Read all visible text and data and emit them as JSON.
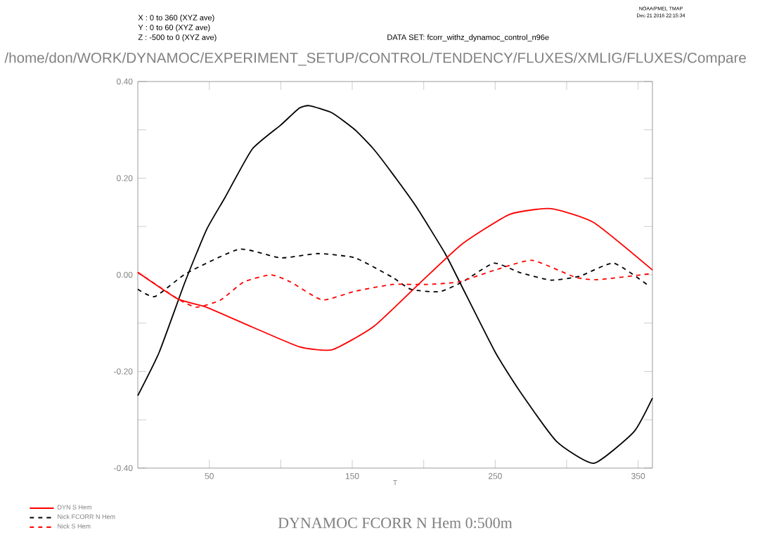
{
  "chart_data": {
    "type": "line",
    "title": "DYNAMOC FCORR N Hem 0:500m",
    "xlabel": "T",
    "annotations": [
      "X : 0 to 360 (XYZ ave)",
      "Y : 0 to 60 (XYZ ave)",
      "Z : -500 to 0 (XYZ ave)",
      "DATA SET: fcorr_withz_dynamoc_control_n96e",
      "/home/don/WORK/DYNAMOC/EXPERIMENT_SETUP/CONTROL/TENDENCY/FLUXES/XMLIG/FLUXES/Compare",
      "NOAA/PMEL TMAP",
      "Dec 21 2016 22:15:34"
    ],
    "xlim": [
      0,
      360
    ],
    "ylim": [
      -0.4,
      0.4
    ],
    "xticks": [
      50,
      {
        "value": 100,
        "label": null
      },
      150,
      {
        "value": 200,
        "label": null
      },
      250,
      {
        "value": 300,
        "label": null
      },
      350
    ],
    "yticks": [
      {
        "value": -0.4,
        "label": "-0.40"
      },
      {
        "value": -0.3,
        "label": null
      },
      {
        "value": -0.2,
        "label": "-0.20"
      },
      {
        "value": -0.1,
        "label": null
      },
      {
        "value": 0.0,
        "label": "0.00"
      },
      {
        "value": 0.1,
        "label": null
      },
      {
        "value": 0.2,
        "label": "0.20"
      },
      {
        "value": 0.3,
        "label": null
      },
      {
        "value": 0.4,
        "label": "0.40"
      }
    ],
    "legend": "bottom left",
    "series": [
      {
        "color": "#000000",
        "line_style": "solid",
        "x": [
          0,
          15,
          33,
          48,
          61,
          80,
          100,
          113,
          120,
          136,
          152,
          165,
          178,
          195,
          215,
          226,
          250,
          267,
          293,
          319,
          347,
          360
        ],
        "values": [
          -0.25,
          -0.16,
          -0.015,
          0.093,
          0.16,
          0.26,
          0.31,
          0.345,
          0.35,
          0.335,
          0.3,
          0.26,
          0.21,
          0.14,
          0.044,
          -0.02,
          -0.16,
          -0.24,
          -0.345,
          -0.39,
          -0.325,
          -0.255
        ]
      },
      {
        "name": "DYN S Hem",
        "color": "#ff0000",
        "line_style": "solid",
        "x": [
          0,
          28,
          48,
          80,
          113,
          136,
          165,
          198,
          227,
          260,
          289,
          319,
          360
        ],
        "values": [
          0.005,
          -0.05,
          -0.067,
          -0.108,
          -0.149,
          -0.155,
          -0.107,
          -0.015,
          0.064,
          0.125,
          0.137,
          0.108,
          0.01
        ]
      },
      {
        "name": "Nick FCORR N Hem",
        "color": "#000000",
        "line_style": "dashed",
        "x": [
          0,
          12,
          34,
          71,
          100,
          126,
          152,
          178,
          191,
          211,
          227,
          249,
          267,
          289,
          309,
          333,
          358
        ],
        "values": [
          -0.03,
          -0.045,
          0.003,
          0.053,
          0.035,
          0.044,
          0.035,
          -0.005,
          -0.03,
          -0.035,
          -0.015,
          0.024,
          0.005,
          -0.011,
          -0.003,
          0.024,
          -0.024
        ]
      },
      {
        "name": "Nick S Hem",
        "color": "#ff0000",
        "line_style": "dashed",
        "x": [
          0,
          28,
          41,
          58,
          74,
          93,
          107,
          129,
          152,
          178,
          201,
          224,
          250,
          276,
          306,
          322,
          358
        ],
        "values": [
          0.005,
          -0.05,
          -0.067,
          -0.052,
          -0.015,
          0.0,
          -0.015,
          -0.052,
          -0.034,
          -0.02,
          -0.02,
          -0.015,
          0.01,
          0.03,
          -0.005,
          -0.01,
          0.002
        ]
      }
    ]
  }
}
